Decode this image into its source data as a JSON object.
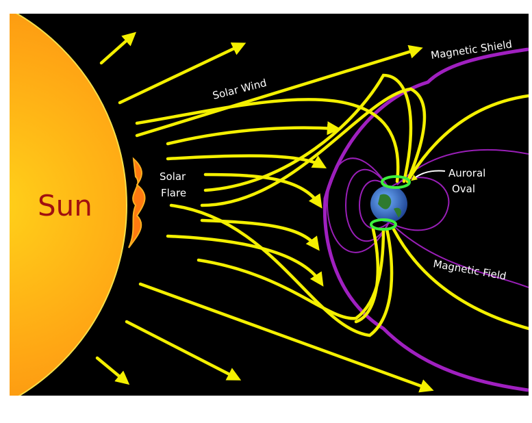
{
  "labels": {
    "magnetic_shield": "Magnetic Shield",
    "solar_wind": "Solar Wind",
    "sun": "Sun",
    "solar_flare": [
      "Solar",
      "Flare"
    ],
    "auroral_oval": [
      "Auroral",
      "Oval"
    ],
    "magnetic_field": "Magnetic Field"
  }
}
